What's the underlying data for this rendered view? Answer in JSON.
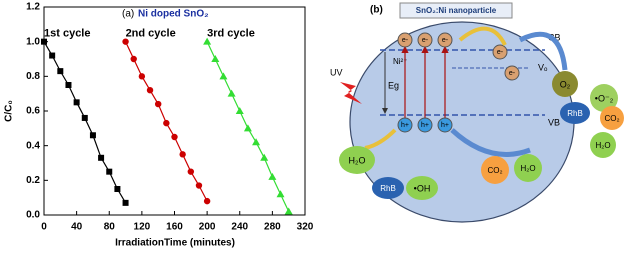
{
  "chart_data": {
    "type": "line",
    "panel_label": "(a)",
    "title": "Ni doped SnO₂",
    "xlabel": "IrradiationTime (minutes)",
    "ylabel": "C/C₀",
    "xlim": [
      0,
      320
    ],
    "xticks": [
      0,
      40,
      80,
      120,
      160,
      200,
      240,
      280,
      320
    ],
    "ylim": [
      0,
      1.2
    ],
    "yticks": [
      {
        "value": 0,
        "label": "0.0"
      },
      0.2,
      0.4,
      0.6,
      0.8,
      {
        "value": 1,
        "label": "1.0"
      },
      1.2
    ],
    "series": [
      {
        "name": "1st cycle",
        "color": "#000000",
        "marker": "square",
        "x": [
          0,
          10,
          20,
          30,
          40,
          50,
          60,
          70,
          80,
          90,
          100
        ],
        "values": [
          1.0,
          0.92,
          0.83,
          0.75,
          0.65,
          0.56,
          0.46,
          0.33,
          0.25,
          0.15,
          0.07
        ]
      },
      {
        "name": "2nd cycle",
        "color": "#cc0000",
        "marker": "circle",
        "x": [
          100,
          110,
          120,
          130,
          140,
          150,
          160,
          170,
          180,
          190,
          200
        ],
        "values": [
          1.0,
          0.9,
          0.8,
          0.72,
          0.64,
          0.53,
          0.45,
          0.35,
          0.25,
          0.17,
          0.08
        ]
      },
      {
        "name": "3rd cycle",
        "color": "#33dd33",
        "marker": "triangle",
        "x": [
          200,
          210,
          220,
          230,
          240,
          250,
          260,
          270,
          280,
          290,
          300
        ],
        "values": [
          1.0,
          0.9,
          0.8,
          0.7,
          0.6,
          0.5,
          0.42,
          0.33,
          0.22,
          0.12,
          0.02
        ]
      }
    ]
  },
  "diagram": {
    "panel_label": "(b)",
    "particle": "SnO₂:Ni nanoparticle",
    "cb": "CB",
    "vb": "VB",
    "dopant": "Ni²⁺",
    "gap": "Eg",
    "vacancy": "Vₒ",
    "electron": "e-",
    "hole": "h+",
    "light": "UV",
    "oxygen": "O₂",
    "superoxide": "•O⁻₂",
    "dye": "RhB",
    "co2": "CO₂",
    "water": "H₂O",
    "hydroxyl": "•OH"
  }
}
